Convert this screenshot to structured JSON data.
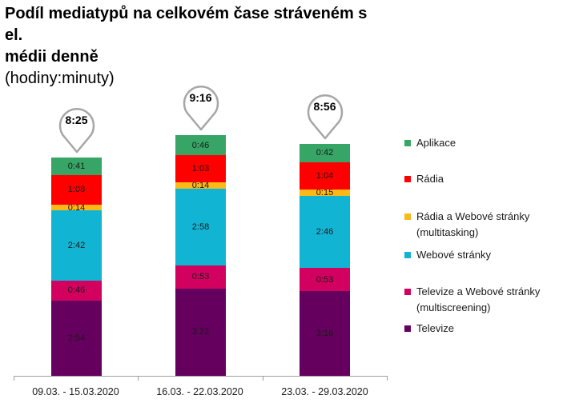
{
  "title": {
    "line1": "Podíl mediatypů na celkovém čase stráveném s el.",
    "line2": "médii denně",
    "subtitle": "(hodiny:minuty)"
  },
  "colors": {
    "aplikace": "#37a566",
    "radia": "#ff0000",
    "radia_web": "#fbb917",
    "web": "#12b4d4",
    "tv_web": "#d2005f",
    "televize": "#66005e"
  },
  "legend": [
    {
      "label": "Aplikace",
      "color": "#37a566"
    },
    {
      "label": "Rádia",
      "color": "#ff0000"
    },
    {
      "label": "Rádia a Webové stránky (multitasking)",
      "color": "#fbb917"
    },
    {
      "label": "Webové stránky",
      "color": "#12b4d4"
    },
    {
      "label": "Televize a Webové stránky (multiscreening)",
      "color": "#d2005f"
    },
    {
      "label": "Televize",
      "color": "#66005e"
    }
  ],
  "bars": [
    {
      "category": "09.03. - 15.03.2020",
      "total": "8:25",
      "segments": {
        "televize": "2:54",
        "tv_web": "0:46",
        "web": "2:42",
        "radia_web": "0:14",
        "radia": "1:08",
        "aplikace": "0:41"
      }
    },
    {
      "category": "16.03. - 22.03.2020",
      "total": "9:16",
      "segments": {
        "televize": "3:22",
        "tv_web": "0:53",
        "web": "2:58",
        "radia_web": "0:14",
        "radia": "1:03",
        "aplikace": "0:46"
      }
    },
    {
      "category": "23.03. - 29.03.2020",
      "total": "8:56",
      "segments": {
        "televize": "3:16",
        "tv_web": "0:53",
        "web": "2:46",
        "radia_web": "0:15",
        "radia": "1:04",
        "aplikace": "0:42"
      }
    }
  ],
  "chart_data": {
    "type": "bar",
    "stacked": true,
    "title": "Podíl mediatypů na celkovém čase stráveném s el. médii denně",
    "subtitle": "(hodiny:minuty)",
    "xlabel": "",
    "ylabel": "",
    "categories": [
      "09.03. - 15.03.2020",
      "16.03. - 22.03.2020",
      "23.03. - 29.03.2020"
    ],
    "units": "minutes",
    "series": [
      {
        "name": "Televize",
        "color": "#66005e",
        "values": [
          174,
          202,
          196
        ],
        "labels": [
          "2:54",
          "3:22",
          "3:16"
        ]
      },
      {
        "name": "Televize a Webové stránky (multiscreening)",
        "color": "#d2005f",
        "values": [
          46,
          53,
          53
        ],
        "labels": [
          "0:46",
          "0:53",
          "0:53"
        ]
      },
      {
        "name": "Webové stránky",
        "color": "#12b4d4",
        "values": [
          162,
          178,
          166
        ],
        "labels": [
          "2:42",
          "2:58",
          "2:46"
        ]
      },
      {
        "name": "Rádia a Webové stránky (multitasking)",
        "color": "#fbb917",
        "values": [
          14,
          14,
          15
        ],
        "labels": [
          "0:14",
          "0:14",
          "0:15"
        ]
      },
      {
        "name": "Rádia",
        "color": "#ff0000",
        "values": [
          68,
          63,
          64
        ],
        "labels": [
          "1:08",
          "1:03",
          "1:04"
        ]
      },
      {
        "name": "Aplikace",
        "color": "#37a566",
        "values": [
          41,
          46,
          42
        ],
        "labels": [
          "0:41",
          "0:46",
          "0:42"
        ]
      }
    ],
    "totals": {
      "values": [
        505,
        556,
        536
      ],
      "labels": [
        "8:25",
        "9:16",
        "8:56"
      ]
    },
    "grid": false,
    "y_axis_visible": false,
    "legend_position": "right"
  }
}
